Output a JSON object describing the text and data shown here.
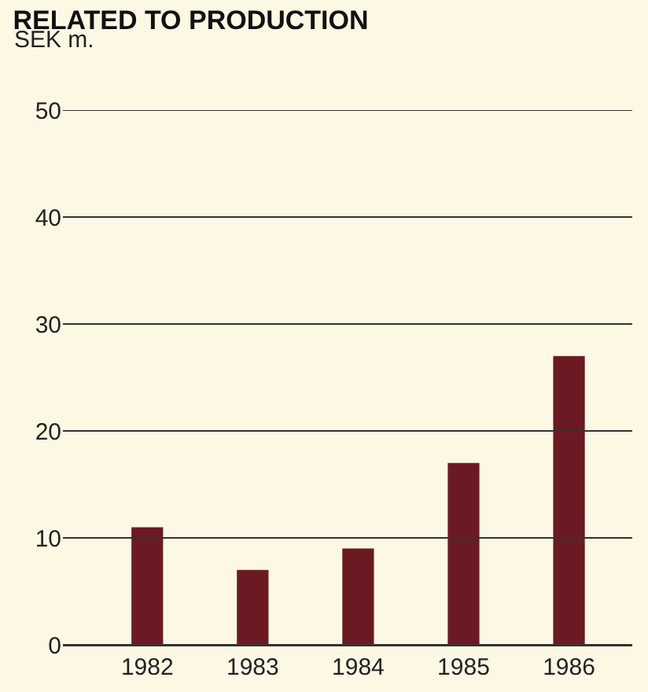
{
  "chart_data": {
    "type": "bar",
    "title": "RELATED TO PRODUCTION",
    "ylabel": "SEK m.",
    "categories": [
      "1982",
      "1983",
      "1984",
      "1985",
      "1986"
    ],
    "values": [
      11,
      7,
      9,
      17,
      27
    ],
    "color": "#6b1a24",
    "ylim": [
      0,
      50
    ],
    "yticks": [
      0,
      10,
      20,
      30,
      40,
      50
    ],
    "grid": "y"
  }
}
